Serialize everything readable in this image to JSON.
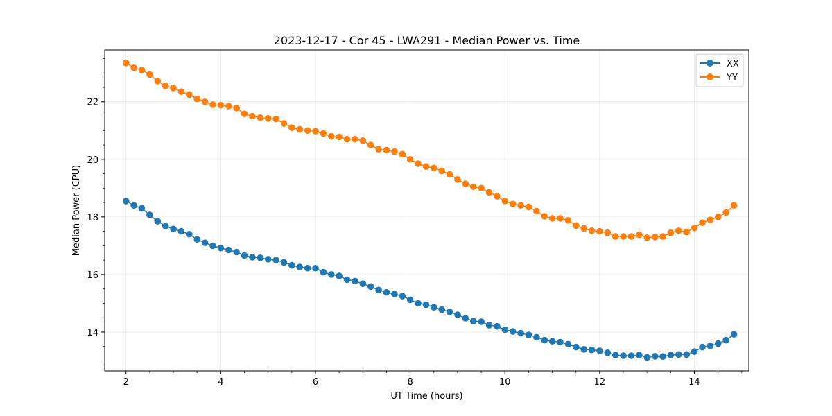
{
  "chart_data": {
    "type": "line",
    "title": "2023-12-17 - Cor 45 - LWA291 - Median Power vs. Time",
    "xlabel": "UT Time (hours)",
    "ylabel": "Median Power (CPU)",
    "xlim": [
      1.55,
      15.15
    ],
    "ylim": [
      12.65,
      23.8
    ],
    "xticks": [
      2,
      4,
      6,
      8,
      10,
      12,
      14
    ],
    "xtick_labels": [
      "2",
      "4",
      "6",
      "8",
      "10",
      "12",
      "14"
    ],
    "yticks": [
      14,
      16,
      18,
      20,
      22
    ],
    "ytick_labels": [
      "14",
      "16",
      "18",
      "20",
      "22"
    ],
    "grid": true,
    "legend_position": "top-right",
    "x_start": 2.0,
    "x_step": 0.1667,
    "series": [
      {
        "name": "XX",
        "color": "#1f77b4",
        "values": [
          18.55,
          18.4,
          18.3,
          18.07,
          17.85,
          17.68,
          17.58,
          17.5,
          17.4,
          17.22,
          17.1,
          17.0,
          16.92,
          16.85,
          16.78,
          16.66,
          16.6,
          16.58,
          16.53,
          16.5,
          16.42,
          16.32,
          16.26,
          16.22,
          16.22,
          16.08,
          16.0,
          15.95,
          15.82,
          15.77,
          15.68,
          15.58,
          15.46,
          15.38,
          15.32,
          15.25,
          15.12,
          15.0,
          14.95,
          14.86,
          14.78,
          14.7,
          14.6,
          14.48,
          14.38,
          14.36,
          14.24,
          14.2,
          14.08,
          14.02,
          13.96,
          13.9,
          13.82,
          13.72,
          13.68,
          13.65,
          13.58,
          13.48,
          13.4,
          13.38,
          13.35,
          13.28,
          13.2,
          13.18,
          13.18,
          13.2,
          13.12,
          13.16,
          13.15,
          13.2,
          13.22,
          13.22,
          13.32,
          13.48,
          13.52,
          13.6,
          13.72,
          13.92
        ]
      },
      {
        "name": "YY",
        "color": "#ff7f0e",
        "values": [
          23.35,
          23.18,
          23.1,
          22.95,
          22.72,
          22.55,
          22.48,
          22.35,
          22.25,
          22.1,
          22.0,
          21.9,
          21.88,
          21.85,
          21.78,
          21.58,
          21.5,
          21.45,
          21.42,
          21.4,
          21.25,
          21.1,
          21.04,
          21.0,
          20.98,
          20.9,
          20.8,
          20.78,
          20.7,
          20.7,
          20.65,
          20.5,
          20.35,
          20.32,
          20.27,
          20.18,
          20.0,
          19.85,
          19.75,
          19.7,
          19.6,
          19.48,
          19.3,
          19.15,
          19.05,
          19.0,
          18.85,
          18.72,
          18.55,
          18.45,
          18.4,
          18.35,
          18.2,
          18.02,
          17.95,
          17.95,
          17.88,
          17.7,
          17.6,
          17.52,
          17.5,
          17.45,
          17.32,
          17.32,
          17.32,
          17.38,
          17.28,
          17.3,
          17.32,
          17.45,
          17.52,
          17.48,
          17.62,
          17.8,
          17.9,
          18.0,
          18.15,
          18.4
        ]
      }
    ]
  }
}
